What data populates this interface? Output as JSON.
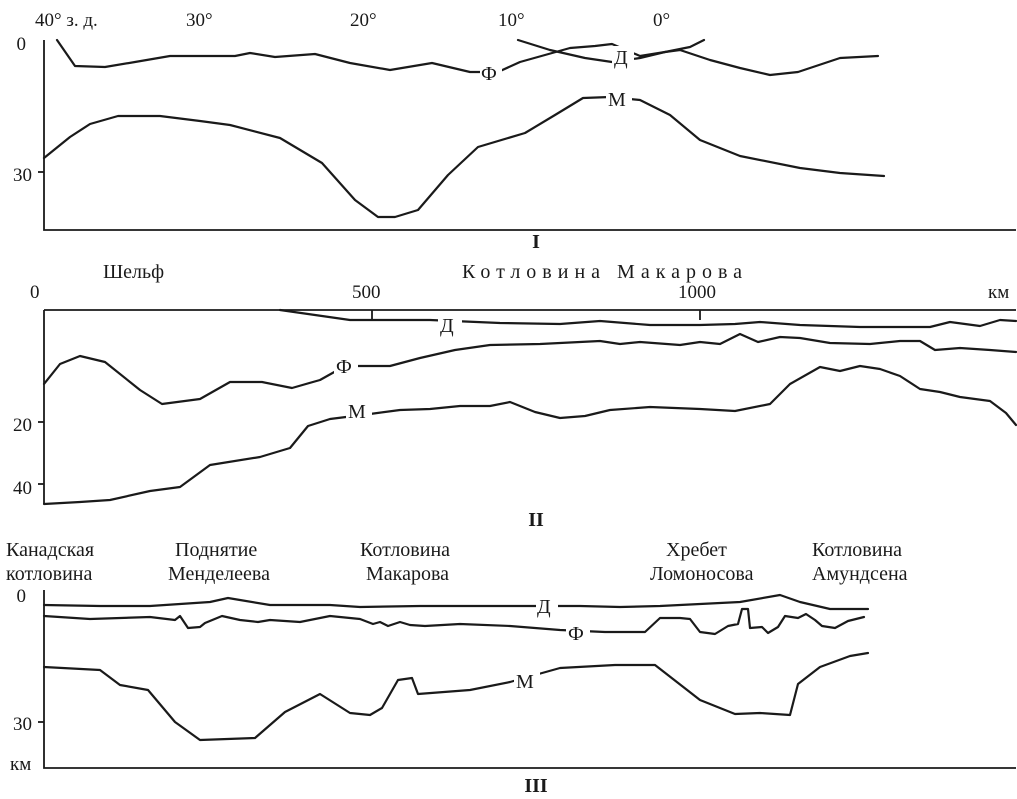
{
  "panel1": {
    "top_ticks": [
      "40° з. д.",
      "30°",
      "20°",
      "10°",
      "0°"
    ],
    "depth_ticks": [
      "0",
      "30"
    ],
    "labels": {
      "D": "Д",
      "F": "Ф",
      "M": "М"
    },
    "roman": "I"
  },
  "panel2": {
    "region_left": "Шельф",
    "region_center": "Котловина Макарова",
    "km_ticks": [
      "0",
      "500",
      "1000"
    ],
    "km_unit": "км",
    "depth_ticks": [
      "20",
      "40"
    ],
    "labels": {
      "D": "Д",
      "F": "Ф",
      "M": "М"
    },
    "roman": "II"
  },
  "panel3": {
    "regions": [
      {
        "line1": "Канадская",
        "line2": "котловина"
      },
      {
        "line1": "Поднятие",
        "line2": "Менделеева"
      },
      {
        "line1": "Котловина",
        "line2": "Макарова"
      },
      {
        "line1": "Хребет",
        "line2": "Ломоносова"
      },
      {
        "line1": "Котловина",
        "line2": "Амундсена"
      }
    ],
    "depth_ticks": [
      "0",
      "30"
    ],
    "depth_unit": "км",
    "labels": {
      "D": "Д",
      "F": "Ф",
      "M": "М"
    },
    "roman": "III"
  }
}
